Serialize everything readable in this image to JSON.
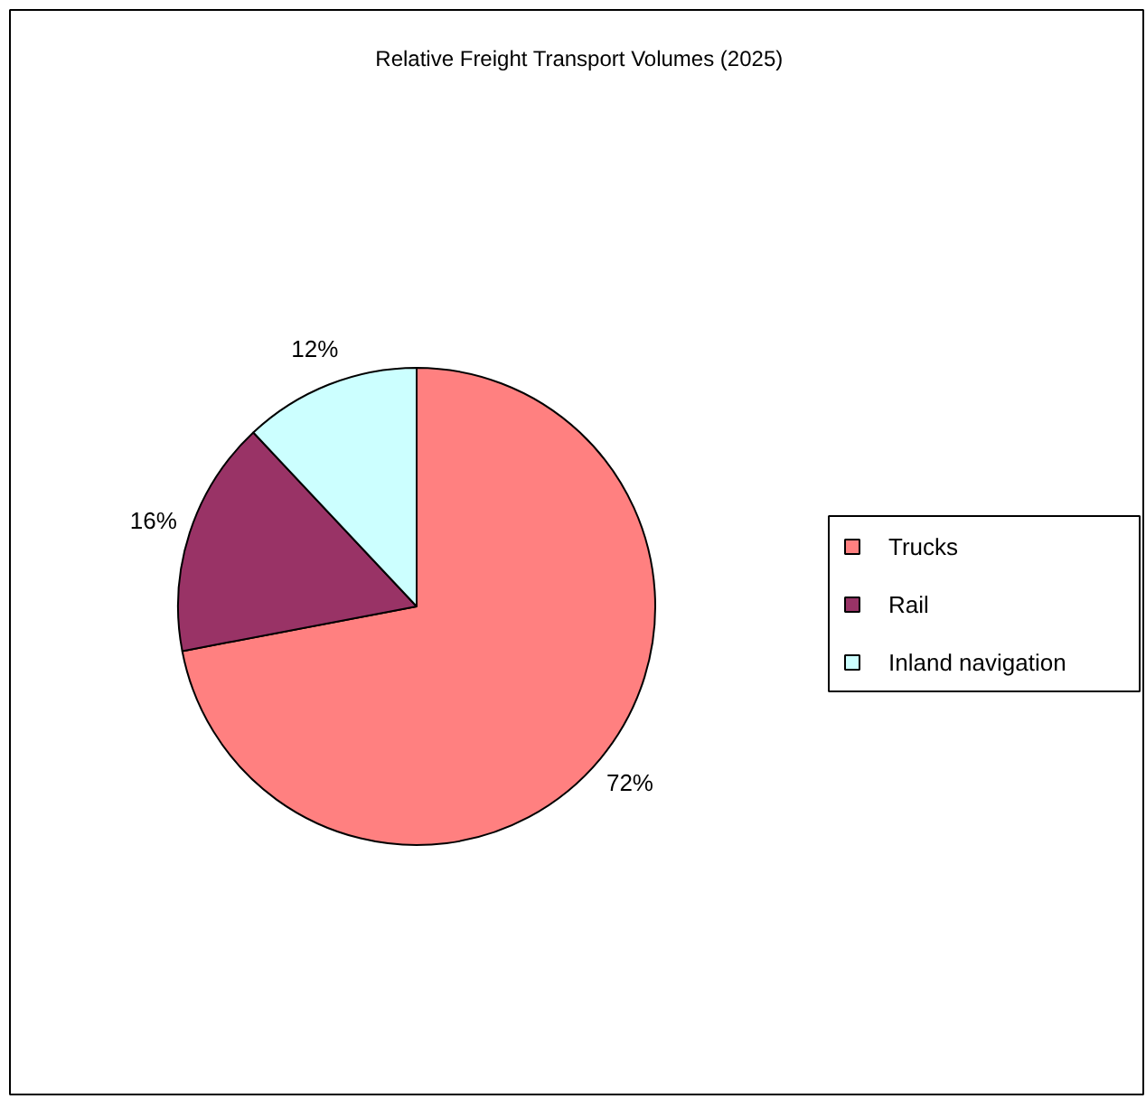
{
  "chart_data": {
    "type": "pie",
    "title": "Relative Freight Transport Volumes (2025)",
    "categories": [
      "Trucks",
      "Rail",
      "Inland navigation"
    ],
    "values": [
      72,
      16,
      12
    ],
    "colors": [
      "#ff8080",
      "#993366",
      "#ccffff"
    ],
    "value_labels": [
      "72%",
      "16%",
      "12%"
    ],
    "legend": "right"
  }
}
